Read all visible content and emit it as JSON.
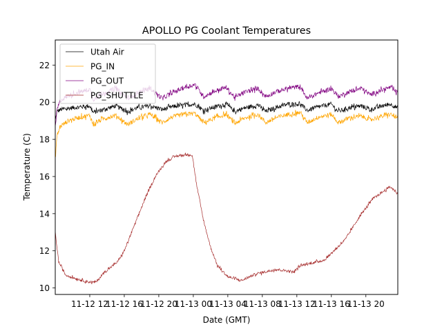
{
  "chart_data": {
    "type": "line",
    "title": "APOLLO PG Coolant Temperatures",
    "xlabel": "Date (GMT)",
    "ylabel": "Temperature (C)",
    "x_units": "hours since 11-12 00:00 GMT",
    "xlim": [
      8.0,
      47.7
    ],
    "ylim": [
      9.65,
      23.35
    ],
    "x_ticks": [
      {
        "value": 12,
        "label": "11-12 12"
      },
      {
        "value": 16,
        "label": "11-12 16"
      },
      {
        "value": 20,
        "label": "11-12 20"
      },
      {
        "value": 24,
        "label": "11-13 00"
      },
      {
        "value": 28,
        "label": "11-13 04"
      },
      {
        "value": 32,
        "label": "11-13 08"
      },
      {
        "value": 36,
        "label": "11-13 12"
      },
      {
        "value": 40,
        "label": "11-13 16"
      },
      {
        "value": 44,
        "label": "11-13 20"
      }
    ],
    "y_ticks": [
      {
        "value": 10,
        "label": "10"
      },
      {
        "value": 12,
        "label": "12"
      },
      {
        "value": 14,
        "label": "14"
      },
      {
        "value": 16,
        "label": "16"
      },
      {
        "value": 18,
        "label": "18"
      },
      {
        "value": 20,
        "label": "20"
      },
      {
        "value": 22,
        "label": "22"
      }
    ],
    "grid": false,
    "legend": "top-left",
    "series": [
      {
        "name": "Utah Air",
        "color": "#000000",
        "noise": 0.12,
        "x": [
          8.0,
          8.2,
          8.6,
          10.0,
          11.0,
          12.0,
          12.4,
          13.5,
          15.0,
          16.4,
          17.5,
          19.0,
          20.4,
          21.5,
          23.0,
          24.2,
          25.2,
          26.5,
          27.8,
          28.8,
          30.0,
          31.5,
          32.4,
          33.5,
          35.0,
          36.4,
          37.2,
          38.5,
          40.0,
          40.8,
          42.0,
          43.5,
          44.5,
          45.5,
          46.8,
          47.7
        ],
        "y": [
          19.0,
          19.5,
          19.6,
          19.7,
          19.75,
          19.8,
          19.45,
          19.6,
          19.8,
          19.5,
          19.7,
          19.8,
          19.6,
          19.75,
          19.85,
          19.9,
          19.55,
          19.75,
          19.9,
          19.5,
          19.7,
          19.85,
          19.5,
          19.7,
          19.9,
          19.9,
          19.55,
          19.75,
          19.9,
          19.5,
          19.7,
          19.8,
          19.6,
          19.75,
          19.9,
          19.7
        ]
      },
      {
        "name": "PG_IN",
        "color": "#ffa500",
        "noise": 0.12,
        "x": [
          8.0,
          8.2,
          8.6,
          9.5,
          10.5,
          12.0,
          12.4,
          13.5,
          15.0,
          16.4,
          17.5,
          19.0,
          20.4,
          21.5,
          23.0,
          24.2,
          25.2,
          26.5,
          27.8,
          28.8,
          30.0,
          31.5,
          32.4,
          33.5,
          35.0,
          36.4,
          37.2,
          38.5,
          40.0,
          40.8,
          42.0,
          43.5,
          44.5,
          45.5,
          46.8,
          47.7
        ],
        "y": [
          17.0,
          18.2,
          18.7,
          19.0,
          19.15,
          19.3,
          18.8,
          19.1,
          19.3,
          18.8,
          19.1,
          19.35,
          18.9,
          19.2,
          19.35,
          19.4,
          18.9,
          19.15,
          19.35,
          18.85,
          19.15,
          19.35,
          18.9,
          19.15,
          19.35,
          19.45,
          18.9,
          19.2,
          19.35,
          18.9,
          19.15,
          19.25,
          19.05,
          19.2,
          19.35,
          19.15
        ]
      },
      {
        "name": "PG_OUT",
        "color": "#800080",
        "noise": 0.12,
        "x": [
          8.0,
          8.2,
          8.6,
          9.5,
          10.5,
          12.0,
          12.4,
          13.5,
          15.0,
          16.4,
          17.5,
          19.0,
          20.4,
          21.5,
          23.0,
          24.2,
          25.2,
          26.5,
          27.8,
          28.8,
          30.0,
          31.5,
          32.4,
          33.5,
          35.0,
          36.4,
          37.2,
          38.5,
          40.0,
          40.8,
          42.0,
          43.5,
          44.5,
          45.5,
          46.8,
          47.7
        ],
        "y": [
          18.6,
          19.6,
          20.1,
          20.35,
          20.5,
          20.7,
          20.15,
          20.45,
          20.75,
          20.2,
          20.5,
          20.75,
          20.2,
          20.5,
          20.8,
          20.95,
          20.3,
          20.6,
          20.8,
          20.25,
          20.55,
          20.75,
          20.3,
          20.55,
          20.75,
          20.85,
          20.2,
          20.5,
          20.75,
          20.3,
          20.55,
          20.75,
          20.4,
          20.6,
          20.8,
          20.5
        ]
      },
      {
        "name": "PG_SHUTTLE",
        "color": "#a52a2a",
        "noise": 0.07,
        "x": [
          8.0,
          8.4,
          9.2,
          10.4,
          11.6,
          12.4,
          12.8,
          13.6,
          15.2,
          16.0,
          17.2,
          18.4,
          19.6,
          20.8,
          22.0,
          23.6,
          23.9,
          24.4,
          25.2,
          26.0,
          26.8,
          28.0,
          29.6,
          31.2,
          33.6,
          35.2,
          35.6,
          36.4,
          39.2,
          41.6,
          43.2,
          44.8,
          46.8,
          47.7
        ],
        "y": [
          13.0,
          11.4,
          10.7,
          10.5,
          10.35,
          10.3,
          10.35,
          10.8,
          11.4,
          12.0,
          13.4,
          14.8,
          16.0,
          16.8,
          17.1,
          17.2,
          17.1,
          15.5,
          13.6,
          12.2,
          11.2,
          10.6,
          10.4,
          10.75,
          11.0,
          10.9,
          10.85,
          11.2,
          11.5,
          12.6,
          13.8,
          14.8,
          15.45,
          15.1
        ]
      }
    ]
  }
}
